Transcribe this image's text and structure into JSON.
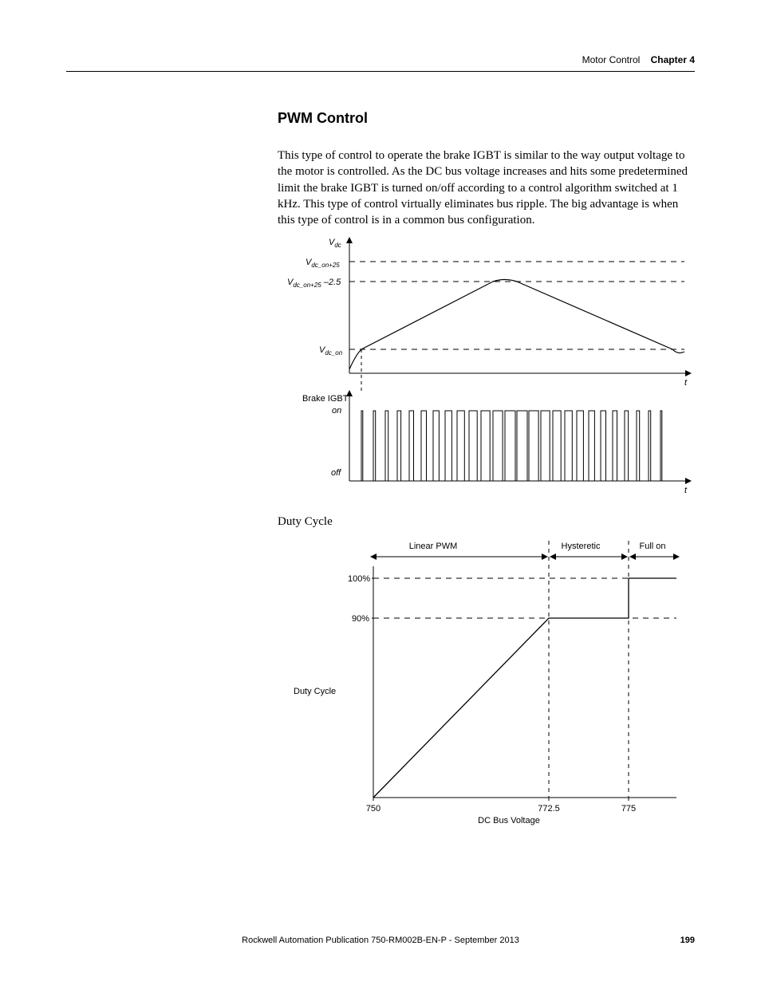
{
  "header": {
    "section": "Motor Control",
    "chapter_label": "Chapter 4"
  },
  "title": "PWM Control",
  "paragraph": "This type of control to operate the brake IGBT is similar to the way output voltage to the motor is controlled. As the DC bus voltage increases and hits some predetermined limit the brake IGBT is turned on/off according to a control algorithm switched at 1 kHz. This type of control virtually eliminates bus ripple. The big advantage is when this type of control is in a common bus configuration.",
  "duty_cycle_heading": "Duty Cycle",
  "chart1": {
    "y_axis_label": "V",
    "y_axis_sub": "dc",
    "levels": [
      {
        "label_main": "V",
        "label_sub": "dc_on+25"
      },
      {
        "label_main": "V",
        "label_sub": "dc_on+25",
        "suffix": " –2.5"
      },
      {
        "label_main": "V",
        "label_sub": "dc_on"
      }
    ],
    "x_label": "t",
    "brake_label": "Brake IGBT",
    "on": "on",
    "off": "off",
    "x_label2": "t",
    "colors": {
      "axis": "#000000",
      "line": "#000000",
      "dash": "#000000"
    }
  },
  "chart2": {
    "regions": [
      "Linear PWM",
      "Hysteretic",
      "Full on"
    ],
    "y_ticks": [
      "100%",
      "90%"
    ],
    "y_label": "Duty Cycle",
    "x_ticks": [
      "750",
      "772.5",
      "775"
    ],
    "x_label": "DC Bus Voltage",
    "colors": {
      "axis": "#000000",
      "line": "#000000",
      "dash": "#000000"
    }
  },
  "footer": {
    "pub": "Rockwell Automation Publication 750-RM002B-EN-P - September 2013",
    "page": "199"
  }
}
